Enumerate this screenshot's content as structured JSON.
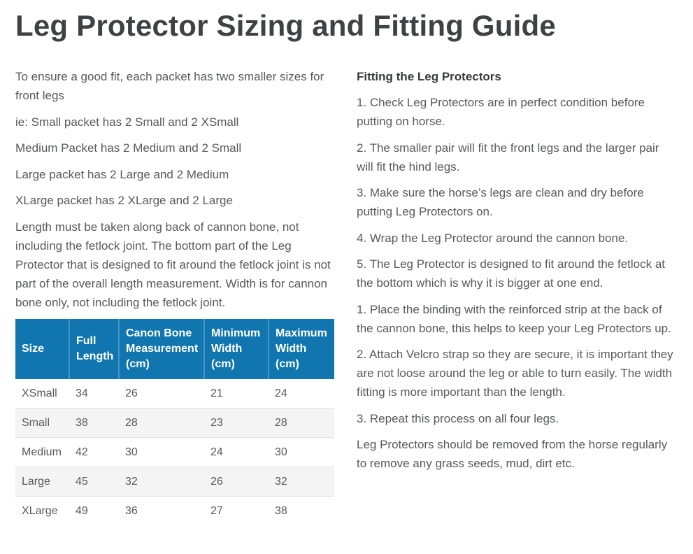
{
  "title": "Leg Protector Sizing and Fitting Guide",
  "sizing": {
    "paragraphs": [
      "To ensure a good fit, each packet has two smaller sizes for front legs",
      "ie: Small packet has 2 Small and 2 XSmall",
      "Medium Packet has 2 Medium and 2 Small",
      "Large packet has 2 Large and 2 Medium",
      "XLarge packet has 2 XLarge and 2 Large",
      "Length must be taken along back of cannon bone, not including the fetlock joint. The bottom part of the Leg Protector that is designed to fit around the fetlock joint is not part of the overall length measurement. Width is for cannon bone only, not including the fetlock joint."
    ],
    "table": {
      "headers": [
        "Size",
        "Full Length",
        "Canon Bone Measurement (cm)",
        "Minimum Width (cm)",
        "Maximum Width (cm)"
      ],
      "rows": [
        [
          "XSmall",
          "34",
          "26",
          "21",
          "24"
        ],
        [
          "Small",
          "38",
          "28",
          "23",
          "28"
        ],
        [
          "Medium",
          "42",
          "30",
          "24",
          "30"
        ],
        [
          "Large",
          "45",
          "32",
          "26",
          "32"
        ],
        [
          "XLarge",
          "49",
          "36",
          "27",
          "38"
        ]
      ]
    }
  },
  "fitting": {
    "heading": "Fitting the Leg Protectors",
    "steps": [
      "1. Check Leg Protectors are in perfect condition before putting on horse.",
      "2. The smaller pair will fit the front legs and the larger pair will fit the hind legs.",
      "3. Make sure the horse’s legs are clean and dry before putting Leg Protectors on.",
      "4. Wrap the Leg Protector around the cannon bone.",
      "5. The Leg Protector is designed to fit around the fetlock at the bottom which is why it is bigger at one end.",
      "1. Place the binding with the reinforced strip at the back of the cannon bone, this helps to keep your Leg Protectors up.",
      "2. Attach Velcro strap so they are secure, it is important they are not loose around the leg or able to turn easily. The width fitting is more important than the length.",
      "3. Repeat this process on all four legs.",
      "Leg Protectors should be removed from the horse regularly to remove any grass seeds, mud, dirt etc."
    ]
  },
  "colors": {
    "table_header_blue": "#1176b0",
    "table_header_divider_blue": "#4695c3",
    "alt_row_bg": "#f4f4f4",
    "row_border": "#e3e3e3",
    "title_text": "#3f4145",
    "body_text": "#58595b"
  }
}
